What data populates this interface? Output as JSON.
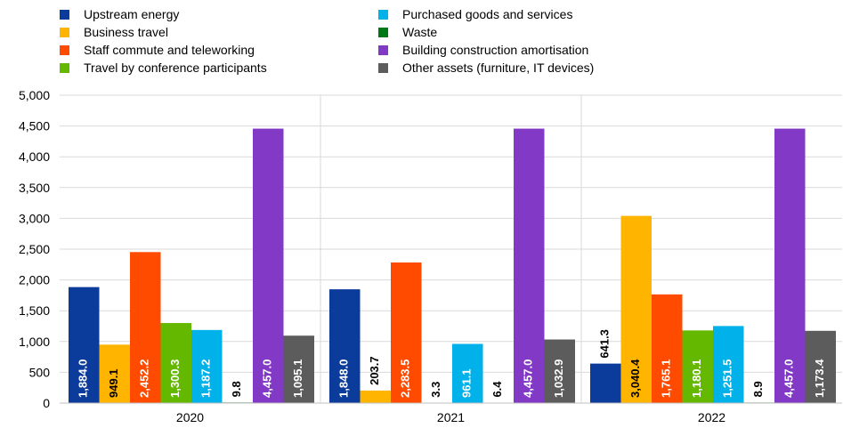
{
  "chart_data": {
    "type": "bar",
    "categories": [
      "2020",
      "2021",
      "2022"
    ],
    "series": [
      {
        "name": "Upstream energy",
        "color": "#0b3c9c",
        "values": [
          1884.0,
          1848.0,
          641.3
        ],
        "labels": [
          "1,884.0",
          "1,848.0",
          "641.3"
        ]
      },
      {
        "name": "Business travel",
        "color": "#ffb400",
        "values": [
          949.1,
          203.7,
          3040.4
        ],
        "labels": [
          "949.1",
          "203.7",
          "3,040.4"
        ]
      },
      {
        "name": "Staff commute and teleworking",
        "color": "#ff4b00",
        "values": [
          2452.2,
          2283.5,
          1765.1
        ],
        "labels": [
          "2,452.2",
          "2,283.5",
          "1,765.1"
        ]
      },
      {
        "name": "Travel by conference participants",
        "color": "#65b800",
        "values": [
          1300.3,
          3.3,
          1180.1
        ],
        "labels": [
          "1,300.3",
          "3.3",
          "1,180.1"
        ]
      },
      {
        "name": "Purchased goods and services",
        "color": "#00b1ea",
        "values": [
          1187.2,
          961.1,
          1251.5
        ],
        "labels": [
          "1,187.2",
          "961.1",
          "1,251.5"
        ]
      },
      {
        "name": "Waste",
        "color": "#007816",
        "values": [
          9.8,
          6.4,
          8.9
        ],
        "labels": [
          "9.8",
          "6.4",
          "8.9"
        ]
      },
      {
        "name": "Building construction amortisation",
        "color": "#8139c6",
        "values": [
          4457.0,
          4457.0,
          4457.0
        ],
        "labels": [
          "4,457.0",
          "4,457.0",
          "4,457.0"
        ]
      },
      {
        "name": "Other assets (furniture, IT devices)",
        "color": "#5c5c5c",
        "values": [
          1095.1,
          1032.9,
          1173.4
        ],
        "labels": [
          "1,095.1",
          "1,032.9",
          "1,173.4"
        ]
      }
    ],
    "ylim": [
      0,
      5000
    ],
    "yticks": [
      "0",
      "500",
      "1,000",
      "1,500",
      "2,000",
      "2,500",
      "3,000",
      "3,500",
      "4,000",
      "4,500",
      "5,000"
    ],
    "title": "",
    "xlabel": "",
    "ylabel": "",
    "grid": true,
    "legend_position": "top"
  }
}
